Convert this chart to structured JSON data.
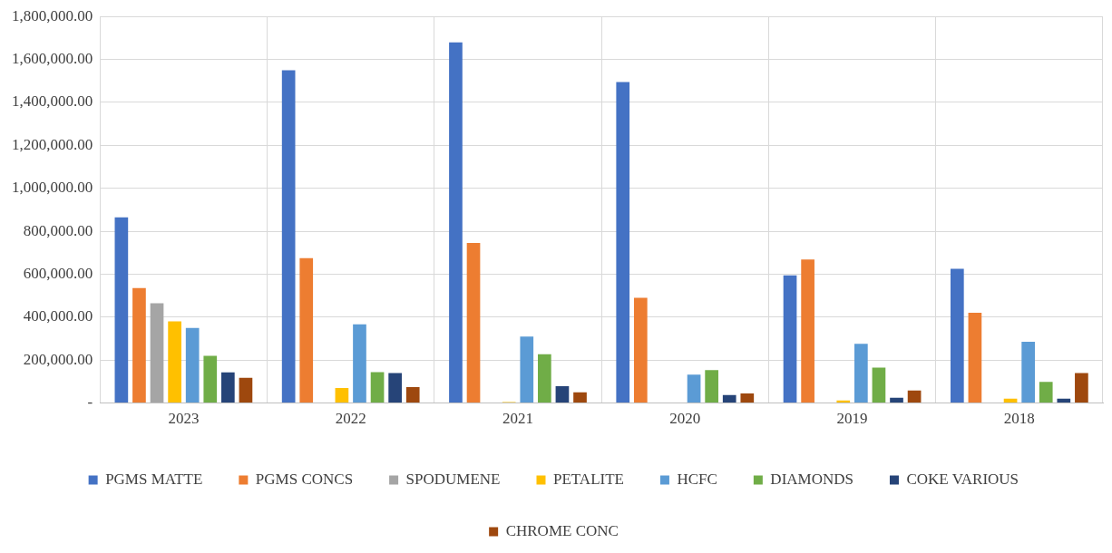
{
  "chart_data": {
    "type": "bar",
    "categories": [
      "2023",
      "2022",
      "2021",
      "2020",
      "2019",
      "2018"
    ],
    "series": [
      {
        "name": "PGMS MATTE",
        "color": "#4472c4",
        "values": [
          865000,
          1550000,
          1680000,
          1495000,
          595000,
          625000
        ]
      },
      {
        "name": "PGMS CONCS",
        "color": "#ed7d31",
        "values": [
          535000,
          675000,
          745000,
          490000,
          668000,
          420000
        ]
      },
      {
        "name": "SPODUMENE",
        "color": "#a5a5a5",
        "values": [
          465000,
          0,
          0,
          0,
          0,
          0
        ]
      },
      {
        "name": "PETALITE",
        "color": "#ffc000",
        "values": [
          380000,
          70000,
          5000,
          0,
          12000,
          20000
        ]
      },
      {
        "name": "HCFC",
        "color": "#5b9bd5",
        "values": [
          350000,
          367000,
          310000,
          132000,
          276000,
          285000
        ]
      },
      {
        "name": "DIAMONDS",
        "color": "#70ad47",
        "values": [
          220000,
          144000,
          227000,
          153000,
          165000,
          99000
        ]
      },
      {
        "name": "COKE VARIOUS",
        "color": "#264478",
        "values": [
          143000,
          140000,
          78000,
          37000,
          25000,
          20000
        ]
      },
      {
        "name": "CHROME CONC",
        "color": "#9e480e",
        "values": [
          118000,
          74000,
          50000,
          45000,
          58000,
          140000
        ]
      }
    ],
    "ylim": [
      0,
      1800000
    ],
    "yticks": [
      {
        "value": 0,
        "label": "-"
      },
      {
        "value": 200000,
        "label": "200,000.00"
      },
      {
        "value": 400000,
        "label": "400,000.00"
      },
      {
        "value": 600000,
        "label": "600,000.00"
      },
      {
        "value": 800000,
        "label": "800,000.00"
      },
      {
        "value": 1000000,
        "label": "1,000,000.00"
      },
      {
        "value": 1200000,
        "label": "1,200,000.00"
      },
      {
        "value": 1400000,
        "label": "1,400,000.00"
      },
      {
        "value": 1600000,
        "label": "1,600,000.00"
      },
      {
        "value": 1800000,
        "label": "1,800,000.00"
      }
    ],
    "grid": true,
    "legend": "bottom"
  }
}
